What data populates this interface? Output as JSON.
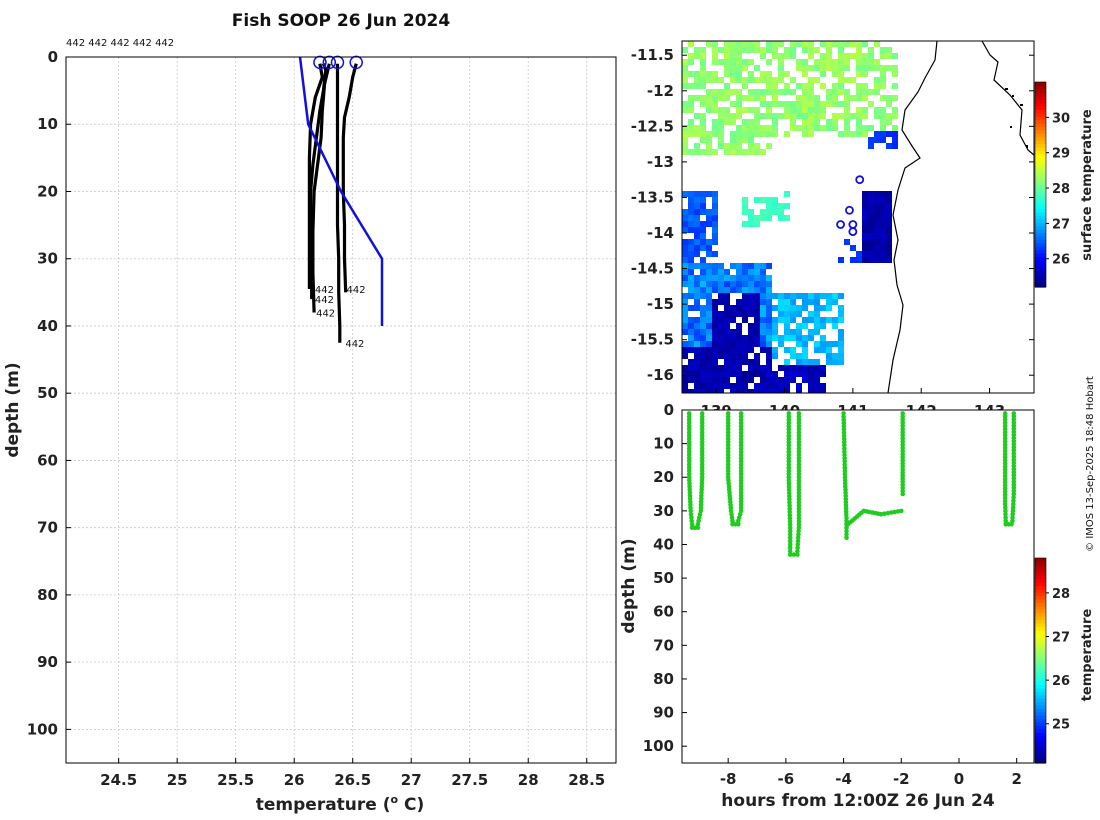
{
  "title": "Fish SOOP 26 Jun 2024",
  "credit": "© IMOS 13-Sep-2025 18:48 Hobart",
  "chart_data": [
    {
      "type": "line",
      "name": "temperature-depth-profiles",
      "xlabel": "temperature (° C)",
      "xlabel_main": "temperature (",
      "xlabel_sup": "o",
      "xlabel_tail": " C)",
      "ylabel": "depth (m)",
      "xlim": [
        24.05,
        28.75
      ],
      "ylim": [
        0,
        105
      ],
      "y_inverted": true,
      "xticks": [
        24.5,
        25,
        25.5,
        26,
        26.5,
        27,
        27.5,
        28,
        28.5
      ],
      "xtick_labels": [
        "24.5",
        "25",
        "25.5",
        "26",
        "26.5",
        "27",
        "27.5",
        "28",
        "28.5"
      ],
      "yticks": [
        0,
        10,
        20,
        30,
        40,
        50,
        60,
        70,
        80,
        90,
        100
      ],
      "ytick_labels": [
        "0",
        "10",
        "20",
        "30",
        "40",
        "50",
        "60",
        "70",
        "80",
        "90",
        "100"
      ],
      "top_labels": "442 442 442 442 442",
      "series": [
        {
          "name": "profile-1",
          "label": "442",
          "color": "#000000",
          "points": [
            [
              26.22,
              1
            ],
            [
              26.24,
              3
            ],
            [
              26.18,
              6
            ],
            [
              26.14,
              10
            ],
            [
              26.13,
              15
            ],
            [
              26.13,
              20
            ],
            [
              26.13,
              25
            ],
            [
              26.13,
              30
            ],
            [
              26.13,
              34.5
            ]
          ]
        },
        {
          "name": "profile-2",
          "label": "442",
          "color": "#000000",
          "points": [
            [
              26.25,
              1
            ],
            [
              26.27,
              2
            ],
            [
              26.25,
              5
            ],
            [
              26.22,
              8
            ],
            [
              26.19,
              12
            ],
            [
              26.16,
              16
            ],
            [
              26.14,
              20
            ],
            [
              26.14,
              25
            ],
            [
              26.14,
              30
            ],
            [
              26.15,
              35
            ],
            [
              26.15,
              36
            ]
          ]
        },
        {
          "name": "profile-3",
          "label": "442",
          "color": "#000000",
          "points": [
            [
              26.3,
              1
            ],
            [
              26.26,
              4
            ],
            [
              26.24,
              8
            ],
            [
              26.23,
              12
            ],
            [
              26.2,
              16
            ],
            [
              26.17,
              20
            ],
            [
              26.16,
              26
            ],
            [
              26.16,
              32
            ],
            [
              26.17,
              38
            ]
          ]
        },
        {
          "name": "profile-4",
          "label": "442",
          "color": "#000000",
          "points": [
            [
              26.37,
              1
            ],
            [
              26.37,
              5
            ],
            [
              26.37,
              10
            ],
            [
              26.37,
              15
            ],
            [
              26.37,
              20
            ],
            [
              26.37,
              25
            ],
            [
              26.38,
              30
            ],
            [
              26.38,
              35
            ],
            [
              26.39,
              40
            ],
            [
              26.39,
              42.5
            ]
          ]
        },
        {
          "name": "profile-5",
          "label": "442",
          "color": "#000000",
          "points": [
            [
              26.53,
              1
            ],
            [
              26.5,
              3
            ],
            [
              26.47,
              6
            ],
            [
              26.43,
              9
            ],
            [
              26.42,
              12
            ],
            [
              26.42,
              16
            ],
            [
              26.42,
              20
            ],
            [
              26.43,
              25
            ],
            [
              26.43,
              30
            ],
            [
              26.44,
              35
            ]
          ]
        },
        {
          "name": "climatology",
          "label": "",
          "color": "#1111dd",
          "points": [
            [
              26.05,
              0
            ],
            [
              26.12,
              10
            ],
            [
              26.4,
              20
            ],
            [
              26.75,
              30
            ],
            [
              26.75,
              40
            ]
          ]
        }
      ],
      "surface_markers": [
        {
          "name": "marker-1",
          "x": 26.22,
          "y": 0.8
        },
        {
          "name": "marker-2",
          "x": 26.3,
          "y": 0.8
        },
        {
          "name": "marker-3",
          "x": 26.37,
          "y": 0.8
        },
        {
          "name": "marker-4",
          "x": 26.53,
          "y": 0.8
        }
      ],
      "end_labels": [
        {
          "text": "442",
          "x": 26.16,
          "y": 34.5
        },
        {
          "text": "442",
          "x": 26.16,
          "y": 36
        },
        {
          "text": "442",
          "x": 26.17,
          "y": 38
        },
        {
          "text": "442",
          "x": 26.43,
          "y": 34.5
        },
        {
          "text": "442",
          "x": 26.42,
          "y": 42.5
        }
      ]
    },
    {
      "type": "heatmap",
      "name": "surface-temperature-map",
      "xlim": [
        138.5,
        143.65
      ],
      "ylim": [
        -16.25,
        -11.3
      ],
      "yticks": [
        -11.5,
        -12,
        -12.5,
        -13,
        -13.5,
        -14,
        -14.5,
        -15,
        -15.5,
        -16
      ],
      "ytick_labels": [
        "-11.5",
        "-12",
        "-12.5",
        "-13",
        "-13.5",
        "-14",
        "-14.5",
        "-15",
        "-15.5",
        "-16"
      ],
      "xticks": [
        139,
        140,
        141,
        142,
        143
      ],
      "xtick_labels": [
        "139",
        "140",
        "141",
        "142",
        "143"
      ],
      "colorbar": {
        "label": "surface temperature",
        "range": [
          25.2,
          31.0
        ],
        "ticks": [
          26,
          27,
          28,
          29,
          30
        ],
        "tick_labels": [
          "26",
          "27",
          "28",
          "29",
          "30"
        ]
      },
      "station_markers": [
        {
          "name": "station-1",
          "lon": 141.1,
          "lat": -13.25
        },
        {
          "name": "station-2",
          "lon": 140.95,
          "lat": -13.68
        },
        {
          "name": "station-3",
          "lon": 140.82,
          "lat": -13.88
        },
        {
          "name": "station-4",
          "lon": 141.0,
          "lat": -13.88
        },
        {
          "name": "station-5",
          "lon": 141.0,
          "lat": -13.98
        }
      ]
    },
    {
      "type": "scatter",
      "name": "depth-time-section",
      "xlabel": "hours from 12:00Z 26 Jun 24",
      "ylabel": "depth (m)",
      "xlim": [
        -9.6,
        2.6
      ],
      "ylim": [
        0,
        105
      ],
      "y_inverted": true,
      "xticks": [
        -8,
        -6,
        -4,
        -2,
        0,
        2
      ],
      "xtick_labels": [
        "-8",
        "-6",
        "-4",
        "-2",
        "0",
        "2"
      ],
      "yticks": [
        0,
        10,
        20,
        30,
        40,
        50,
        60,
        70,
        80,
        90,
        100
      ],
      "ytick_labels": [
        "0",
        "10",
        "20",
        "30",
        "40",
        "50",
        "60",
        "70",
        "80",
        "90",
        "100"
      ],
      "point_color": "#1fcc1f",
      "casts": [
        {
          "down": [
            [
              -9.35,
              1
            ],
            [
              -9.35,
              20
            ],
            [
              -9.3,
              30
            ],
            [
              -9.25,
              34
            ]
          ],
          "bottom": [
            [
              -9.25,
              35
            ],
            [
              -9.05,
              35
            ]
          ],
          "up": [
            [
              -9.05,
              34
            ],
            [
              -8.95,
              30
            ],
            [
              -8.9,
              20
            ],
            [
              -8.9,
              1
            ]
          ]
        },
        {
          "down": [
            [
              -8.0,
              1
            ],
            [
              -8.0,
              20
            ],
            [
              -7.9,
              30
            ],
            [
              -7.85,
              33
            ]
          ],
          "bottom": [
            [
              -7.85,
              34
            ],
            [
              -7.65,
              34
            ]
          ],
          "up": [
            [
              -7.65,
              33
            ],
            [
              -7.55,
              30
            ],
            [
              -7.55,
              20
            ],
            [
              -7.55,
              1
            ]
          ]
        },
        {
          "down": [
            [
              -5.9,
              1
            ],
            [
              -5.9,
              20
            ],
            [
              -5.85,
              35
            ],
            [
              -5.85,
              42
            ]
          ],
          "bottom": [
            [
              -5.85,
              43
            ],
            [
              -5.6,
              43
            ]
          ],
          "up": [
            [
              -5.6,
              42
            ],
            [
              -5.55,
              35
            ],
            [
              -5.55,
              20
            ],
            [
              -5.55,
              1
            ]
          ]
        },
        {
          "down": [
            [
              -4.0,
              1
            ],
            [
              -3.95,
              20
            ],
            [
              -3.9,
              32
            ],
            [
              -3.9,
              38
            ]
          ],
          "bottom": [
            [
              -3.85,
              34
            ],
            [
              -3.3,
              30
            ],
            [
              -2.7,
              31
            ],
            [
              -2.0,
              30
            ]
          ],
          "up": [
            [
              -1.95,
              25
            ],
            [
              -1.95,
              15
            ],
            [
              -1.95,
              1
            ]
          ]
        },
        {
          "down": [
            [
              1.6,
              1
            ],
            [
              1.6,
              15
            ],
            [
              1.6,
              28
            ],
            [
              1.62,
              33
            ]
          ],
          "bottom": [
            [
              1.62,
              34
            ],
            [
              1.82,
              34
            ]
          ],
          "up": [
            [
              1.85,
              33
            ],
            [
              1.9,
              25
            ],
            [
              1.9,
              12
            ],
            [
              1.9,
              1
            ]
          ]
        }
      ],
      "colorbar": {
        "label": "temperature",
        "range": [
          24.1,
          28.8
        ],
        "ticks": [
          25,
          26,
          27,
          28
        ],
        "tick_labels": [
          "25",
          "26",
          "27",
          "28"
        ]
      }
    }
  ]
}
